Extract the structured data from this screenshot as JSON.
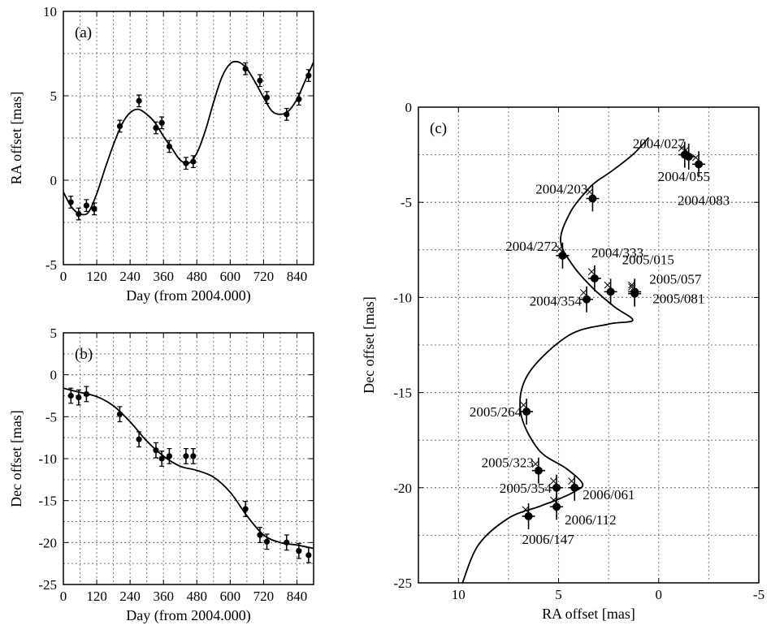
{
  "chart_data": [
    {
      "panel": "(a)",
      "type": "line",
      "xlabel": "Day (from 2004.000)",
      "ylabel": "RA offset [mas]",
      "xlim": [
        0,
        900
      ],
      "ylim": [
        -5,
        10
      ],
      "xticks": [
        "0",
        "120",
        "240",
        "360",
        "480",
        "600",
        "720",
        "840"
      ],
      "yticks": [
        "-5",
        "0",
        "5",
        "10"
      ],
      "grid": true,
      "series": [
        {
          "kind": "points_with_errorbars",
          "x": [
            27,
            55,
            83,
            111,
            203,
            272,
            333,
            354,
            381,
            441,
            467,
            655,
            707,
            732,
            803,
            847,
            882
          ],
          "y": [
            -1.3,
            -2.0,
            -1.5,
            -1.7,
            3.2,
            4.7,
            3.1,
            3.4,
            2.0,
            1.0,
            1.1,
            6.6,
            5.9,
            4.9,
            3.9,
            4.8,
            6.2
          ],
          "yerr": 0.35
        },
        {
          "kind": "model_curve",
          "x": [
            0,
            30,
            60,
            90,
            120,
            150,
            180,
            210,
            240,
            270,
            300,
            330,
            360,
            390,
            420,
            450,
            480,
            510,
            540,
            570,
            600,
            630,
            660,
            690,
            720,
            750,
            780,
            810,
            840,
            870,
            900
          ],
          "y": [
            -0.7,
            -1.6,
            -2.0,
            -1.9,
            -0.8,
            0.7,
            2.1,
            3.3,
            4.0,
            4.2,
            3.9,
            3.4,
            2.6,
            1.9,
            1.2,
            1.0,
            1.6,
            2.9,
            4.6,
            6.1,
            6.9,
            7.0,
            6.6,
            5.8,
            4.9,
            4.1,
            3.9,
            4.1,
            4.8,
            5.9,
            7.0
          ]
        }
      ],
      "label_color": "#000000"
    },
    {
      "panel": "(b)",
      "type": "line",
      "xlabel": "Day (from 2004.000)",
      "ylabel": "Dec offset [mas]",
      "xlim": [
        0,
        900
      ],
      "ylim": [
        -25,
        5
      ],
      "xticks": [
        "0",
        "120",
        "240",
        "360",
        "480",
        "600",
        "720",
        "840"
      ],
      "yticks": [
        "-25",
        "-20",
        "-15",
        "-10",
        "-5",
        "0",
        "5"
      ],
      "grid": true,
      "series": [
        {
          "kind": "points_with_errorbars",
          "x": [
            27,
            55,
            83,
            203,
            272,
            333,
            354,
            381,
            441,
            467,
            655,
            707,
            732,
            803,
            847,
            882
          ],
          "y": [
            -2.5,
            -2.7,
            -2.3,
            -4.7,
            -7.7,
            -9.0,
            -10.0,
            -9.7,
            -9.7,
            -9.7,
            -16.0,
            -19.1,
            -19.9,
            -20.0,
            -21.0,
            -21.5
          ],
          "yerr": 0.9
        },
        {
          "kind": "model_curve",
          "x": [
            0,
            60,
            120,
            180,
            240,
            300,
            360,
            420,
            480,
            540,
            600,
            660,
            720,
            780,
            840,
            900
          ],
          "y": [
            -1.6,
            -2.1,
            -2.6,
            -3.7,
            -5.6,
            -7.9,
            -9.7,
            -10.9,
            -11.4,
            -12.2,
            -14.0,
            -16.8,
            -19.1,
            -20.0,
            -20.3,
            -20.7
          ]
        }
      ]
    },
    {
      "panel": "(c)",
      "type": "scatter",
      "xlabel": "RA offset [mas]",
      "ylabel": "Dec offset [mas]",
      "xlim": [
        12,
        -5
      ],
      "ylim": [
        -25,
        0
      ],
      "xticks": [
        "10",
        "5",
        "0",
        "-5"
      ],
      "yticks": [
        "0",
        "-5",
        "-10",
        "-15",
        "-20",
        "-25"
      ],
      "grid": true,
      "points": [
        {
          "label": "2004/027",
          "x": -1.3,
          "y": -2.5
        },
        {
          "label": "2004/055",
          "x": -1.5,
          "y": -2.6
        },
        {
          "label": "2004/083",
          "x": -2.0,
          "y": -3.0
        },
        {
          "label": "2004/203",
          "x": 3.3,
          "y": -4.8
        },
        {
          "label": "2004/272",
          "x": 4.8,
          "y": -7.8
        },
        {
          "label": "2004/333",
          "x": 3.2,
          "y": -9.0
        },
        {
          "label": "2004/354",
          "x": 3.6,
          "y": -10.1
        },
        {
          "label": "2005/015",
          "x": 2.4,
          "y": -9.7
        },
        {
          "label": "2005/057",
          "x": 1.2,
          "y": -9.8
        },
        {
          "label": "2005/081",
          "x": 1.2,
          "y": -9.7
        },
        {
          "label": "2005/264",
          "x": 6.6,
          "y": -16.0
        },
        {
          "label": "2005/323",
          "x": 6.0,
          "y": -19.1
        },
        {
          "label": "2005/354",
          "x": 5.1,
          "y": -20.0
        },
        {
          "label": "2006/061",
          "x": 4.2,
          "y": -20.0
        },
        {
          "label": "2006/112",
          "x": 5.1,
          "y": -21.0
        },
        {
          "label": "2006/147",
          "x": 6.5,
          "y": -21.5
        }
      ],
      "model_curve": {
        "x": [
          9.8,
          9.0,
          7.5,
          6.0,
          5.0,
          4.2,
          3.8,
          4.6,
          6.0,
          6.9,
          6.5,
          4.5,
          2.5,
          1.3,
          2.2,
          3.3,
          4.3,
          4.9,
          4.4,
          3.6,
          3.1,
          2.4,
          1.3,
          0.5
        ],
        "y": [
          -25.0,
          -23.0,
          -21.6,
          -21.0,
          -20.6,
          -20.2,
          -19.8,
          -19.0,
          -18.0,
          -16.0,
          -14.0,
          -12.0,
          -11.4,
          -11.2,
          -10.5,
          -9.5,
          -8.3,
          -7.0,
          -5.5,
          -4.4,
          -3.9,
          -3.4,
          -2.5,
          -1.6
        ]
      },
      "labels_shown": [
        "2004/027",
        "2004/055",
        "2004/083",
        "2004/203",
        "2004/272",
        "2004/333",
        "2004/354",
        "2005/015",
        "2005/057",
        "2005/081",
        "2005/264",
        "2005/323",
        "2005/354",
        "2006/061",
        "2006/112",
        "2006/147"
      ]
    }
  ]
}
